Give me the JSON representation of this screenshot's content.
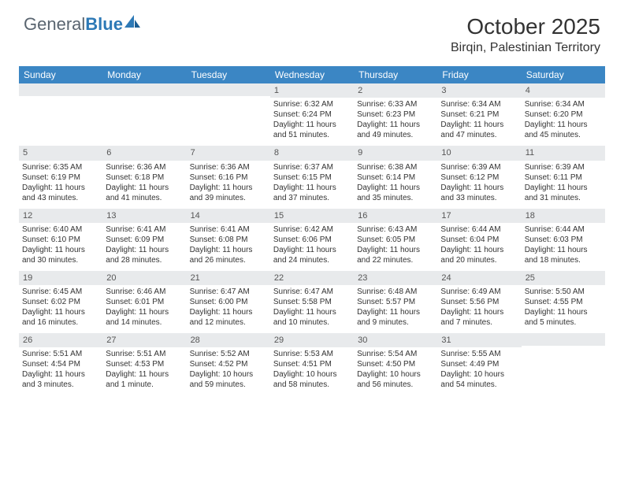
{
  "brand": {
    "part1": "General",
    "part2": "Blue"
  },
  "title": "October 2025",
  "location": "Birqin, Palestinian Territory",
  "colors": {
    "header_bg": "#3b86c4",
    "header_text": "#ffffff",
    "daynum_bg": "#e8eaec",
    "brand_gray": "#5a6570",
    "brand_blue": "#2d79b6"
  },
  "day_names": [
    "Sunday",
    "Monday",
    "Tuesday",
    "Wednesday",
    "Thursday",
    "Friday",
    "Saturday"
  ],
  "weeks": [
    [
      {
        "num": "",
        "sunrise": "",
        "sunset": "",
        "daylight": ""
      },
      {
        "num": "",
        "sunrise": "",
        "sunset": "",
        "daylight": ""
      },
      {
        "num": "",
        "sunrise": "",
        "sunset": "",
        "daylight": ""
      },
      {
        "num": "1",
        "sunrise": "Sunrise: 6:32 AM",
        "sunset": "Sunset: 6:24 PM",
        "daylight": "Daylight: 11 hours and 51 minutes."
      },
      {
        "num": "2",
        "sunrise": "Sunrise: 6:33 AM",
        "sunset": "Sunset: 6:23 PM",
        "daylight": "Daylight: 11 hours and 49 minutes."
      },
      {
        "num": "3",
        "sunrise": "Sunrise: 6:34 AM",
        "sunset": "Sunset: 6:21 PM",
        "daylight": "Daylight: 11 hours and 47 minutes."
      },
      {
        "num": "4",
        "sunrise": "Sunrise: 6:34 AM",
        "sunset": "Sunset: 6:20 PM",
        "daylight": "Daylight: 11 hours and 45 minutes."
      }
    ],
    [
      {
        "num": "5",
        "sunrise": "Sunrise: 6:35 AM",
        "sunset": "Sunset: 6:19 PM",
        "daylight": "Daylight: 11 hours and 43 minutes."
      },
      {
        "num": "6",
        "sunrise": "Sunrise: 6:36 AM",
        "sunset": "Sunset: 6:18 PM",
        "daylight": "Daylight: 11 hours and 41 minutes."
      },
      {
        "num": "7",
        "sunrise": "Sunrise: 6:36 AM",
        "sunset": "Sunset: 6:16 PM",
        "daylight": "Daylight: 11 hours and 39 minutes."
      },
      {
        "num": "8",
        "sunrise": "Sunrise: 6:37 AM",
        "sunset": "Sunset: 6:15 PM",
        "daylight": "Daylight: 11 hours and 37 minutes."
      },
      {
        "num": "9",
        "sunrise": "Sunrise: 6:38 AM",
        "sunset": "Sunset: 6:14 PM",
        "daylight": "Daylight: 11 hours and 35 minutes."
      },
      {
        "num": "10",
        "sunrise": "Sunrise: 6:39 AM",
        "sunset": "Sunset: 6:12 PM",
        "daylight": "Daylight: 11 hours and 33 minutes."
      },
      {
        "num": "11",
        "sunrise": "Sunrise: 6:39 AM",
        "sunset": "Sunset: 6:11 PM",
        "daylight": "Daylight: 11 hours and 31 minutes."
      }
    ],
    [
      {
        "num": "12",
        "sunrise": "Sunrise: 6:40 AM",
        "sunset": "Sunset: 6:10 PM",
        "daylight": "Daylight: 11 hours and 30 minutes."
      },
      {
        "num": "13",
        "sunrise": "Sunrise: 6:41 AM",
        "sunset": "Sunset: 6:09 PM",
        "daylight": "Daylight: 11 hours and 28 minutes."
      },
      {
        "num": "14",
        "sunrise": "Sunrise: 6:41 AM",
        "sunset": "Sunset: 6:08 PM",
        "daylight": "Daylight: 11 hours and 26 minutes."
      },
      {
        "num": "15",
        "sunrise": "Sunrise: 6:42 AM",
        "sunset": "Sunset: 6:06 PM",
        "daylight": "Daylight: 11 hours and 24 minutes."
      },
      {
        "num": "16",
        "sunrise": "Sunrise: 6:43 AM",
        "sunset": "Sunset: 6:05 PM",
        "daylight": "Daylight: 11 hours and 22 minutes."
      },
      {
        "num": "17",
        "sunrise": "Sunrise: 6:44 AM",
        "sunset": "Sunset: 6:04 PM",
        "daylight": "Daylight: 11 hours and 20 minutes."
      },
      {
        "num": "18",
        "sunrise": "Sunrise: 6:44 AM",
        "sunset": "Sunset: 6:03 PM",
        "daylight": "Daylight: 11 hours and 18 minutes."
      }
    ],
    [
      {
        "num": "19",
        "sunrise": "Sunrise: 6:45 AM",
        "sunset": "Sunset: 6:02 PM",
        "daylight": "Daylight: 11 hours and 16 minutes."
      },
      {
        "num": "20",
        "sunrise": "Sunrise: 6:46 AM",
        "sunset": "Sunset: 6:01 PM",
        "daylight": "Daylight: 11 hours and 14 minutes."
      },
      {
        "num": "21",
        "sunrise": "Sunrise: 6:47 AM",
        "sunset": "Sunset: 6:00 PM",
        "daylight": "Daylight: 11 hours and 12 minutes."
      },
      {
        "num": "22",
        "sunrise": "Sunrise: 6:47 AM",
        "sunset": "Sunset: 5:58 PM",
        "daylight": "Daylight: 11 hours and 10 minutes."
      },
      {
        "num": "23",
        "sunrise": "Sunrise: 6:48 AM",
        "sunset": "Sunset: 5:57 PM",
        "daylight": "Daylight: 11 hours and 9 minutes."
      },
      {
        "num": "24",
        "sunrise": "Sunrise: 6:49 AM",
        "sunset": "Sunset: 5:56 PM",
        "daylight": "Daylight: 11 hours and 7 minutes."
      },
      {
        "num": "25",
        "sunrise": "Sunrise: 5:50 AM",
        "sunset": "Sunset: 4:55 PM",
        "daylight": "Daylight: 11 hours and 5 minutes."
      }
    ],
    [
      {
        "num": "26",
        "sunrise": "Sunrise: 5:51 AM",
        "sunset": "Sunset: 4:54 PM",
        "daylight": "Daylight: 11 hours and 3 minutes."
      },
      {
        "num": "27",
        "sunrise": "Sunrise: 5:51 AM",
        "sunset": "Sunset: 4:53 PM",
        "daylight": "Daylight: 11 hours and 1 minute."
      },
      {
        "num": "28",
        "sunrise": "Sunrise: 5:52 AM",
        "sunset": "Sunset: 4:52 PM",
        "daylight": "Daylight: 10 hours and 59 minutes."
      },
      {
        "num": "29",
        "sunrise": "Sunrise: 5:53 AM",
        "sunset": "Sunset: 4:51 PM",
        "daylight": "Daylight: 10 hours and 58 minutes."
      },
      {
        "num": "30",
        "sunrise": "Sunrise: 5:54 AM",
        "sunset": "Sunset: 4:50 PM",
        "daylight": "Daylight: 10 hours and 56 minutes."
      },
      {
        "num": "31",
        "sunrise": "Sunrise: 5:55 AM",
        "sunset": "Sunset: 4:49 PM",
        "daylight": "Daylight: 10 hours and 54 minutes."
      },
      {
        "num": "",
        "sunrise": "",
        "sunset": "",
        "daylight": ""
      }
    ]
  ]
}
